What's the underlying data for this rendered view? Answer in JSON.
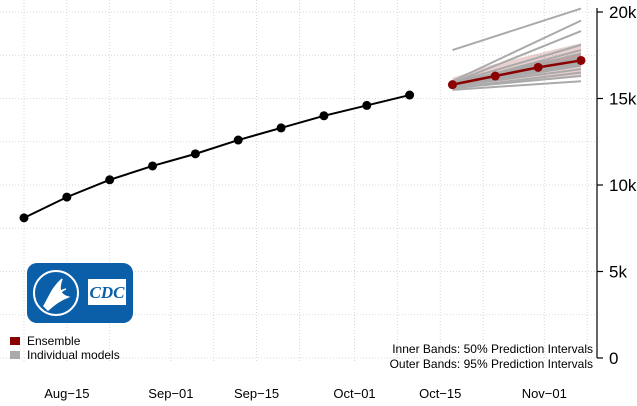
{
  "chart_data": {
    "type": "line",
    "title": "",
    "xlabel": "",
    "ylabel": "",
    "x_ticks": [
      "Aug−15",
      "Sep−01",
      "Sep−15",
      "Oct−01",
      "Oct−15",
      "Nov−01"
    ],
    "y_ticks": [
      "0",
      "5k",
      "10k",
      "15k",
      "20k"
    ],
    "ylim": [
      0,
      20000
    ],
    "grid": true,
    "series": [
      {
        "name": "",
        "kind": "observed",
        "color": "#000000",
        "x": [
          "2020-08-08",
          "2020-08-15",
          "2020-08-22",
          "2020-08-29",
          "2020-09-05",
          "2020-09-12",
          "2020-09-19",
          "2020-09-26",
          "2020-10-03",
          "2020-10-10"
        ],
        "y": [
          8100,
          9300,
          10300,
          11100,
          11800,
          12600,
          13300,
          14000,
          14600,
          15200
        ]
      },
      {
        "name": "Ensemble",
        "kind": "ensemble",
        "color": "#8b0000",
        "x": [
          "2020-10-17",
          "2020-10-24",
          "2020-10-31",
          "2020-11-07"
        ],
        "y": [
          15800,
          16300,
          16800,
          17200
        ],
        "band_50": {
          "low": [
            15700,
            16100,
            16500,
            16900
          ],
          "high": [
            15950,
            16500,
            17100,
            17600
          ]
        },
        "band_95": {
          "low": [
            15500,
            15800,
            16100,
            16300
          ],
          "high": [
            16200,
            17000,
            17600,
            18200
          ]
        }
      },
      {
        "name": "Individual models",
        "kind": "individual",
        "color": "#aaaaaa",
        "x": [
          "2020-10-17",
          "2020-11-07"
        ],
        "models": [
          [
            17800,
            20200
          ],
          [
            16000,
            19500
          ],
          [
            15900,
            18900
          ],
          [
            15900,
            18100
          ],
          [
            15800,
            17800
          ],
          [
            15800,
            17600
          ],
          [
            15800,
            17400
          ],
          [
            15800,
            17300
          ],
          [
            15800,
            17200
          ],
          [
            15800,
            17100
          ],
          [
            15700,
            17000
          ],
          [
            15700,
            16900
          ],
          [
            15700,
            16700
          ],
          [
            15600,
            16500
          ],
          [
            15600,
            16300
          ],
          [
            15500,
            16000
          ]
        ]
      }
    ],
    "legend": {
      "placement": "bottom-left",
      "items": [
        {
          "label": "Ensemble",
          "color": "#8b0000"
        },
        {
          "label": "Individual models",
          "color": "#aaaaaa"
        }
      ]
    },
    "notes": [
      "Inner Bands: 50% Prediction Intervals",
      "Outer Bands: 95% Prediction Intervals"
    ],
    "logo": {
      "label": "CDC",
      "color": "#0b5ea8"
    }
  }
}
